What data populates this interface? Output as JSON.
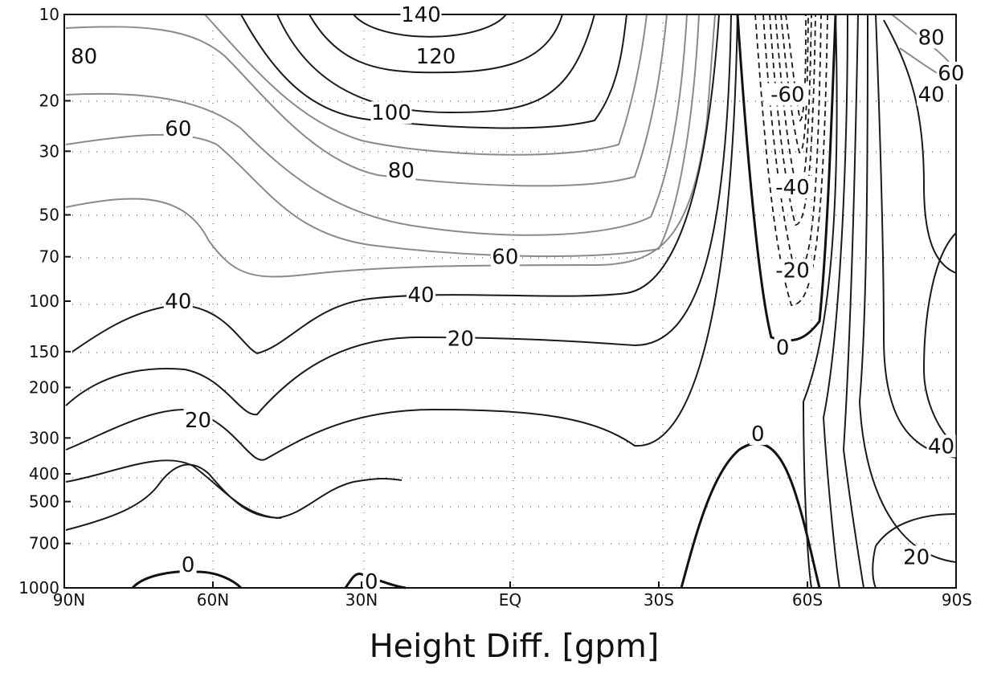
{
  "chart_data": {
    "type": "contour",
    "title": "Height Diff. [gpm]",
    "xlabel": "",
    "ylabel": "",
    "x_ticks": [
      "90N",
      "60N",
      "30N",
      "EQ",
      "30S",
      "60S",
      "90S"
    ],
    "y_ticks": [
      "10",
      "20",
      "30",
      "50",
      "70",
      "100",
      "150",
      "200",
      "300",
      "400",
      "500",
      "700",
      "1000"
    ],
    "y_scale": "log",
    "y_reversed": true,
    "x_range": [
      "90N",
      "90S"
    ],
    "y_range": [
      1000,
      10
    ],
    "grid": "dotted",
    "contour_levels": [
      -60,
      -40,
      -20,
      0,
      20,
      40,
      60,
      80,
      100,
      120,
      140
    ],
    "contour_labels": [
      {
        "level": "140",
        "lat": "18N",
        "p": 10
      },
      {
        "level": "120",
        "lat": "15N",
        "p": 14
      },
      {
        "level": "100",
        "lat": "24N",
        "p": 22
      },
      {
        "level": "80",
        "lat": "86N",
        "p": 14
      },
      {
        "level": "80",
        "lat": "85S",
        "p": 12
      },
      {
        "level": "80",
        "lat": "22N",
        "p": 35
      },
      {
        "level": "60",
        "lat": "89S",
        "p": 16
      },
      {
        "level": "60",
        "lat": "67N",
        "p": 25
      },
      {
        "level": "60",
        "lat": "1N",
        "p": 70
      },
      {
        "level": "40",
        "lat": "85S",
        "p": 19
      },
      {
        "level": "40",
        "lat": "67N",
        "p": 100
      },
      {
        "level": "40",
        "lat": "18N",
        "p": 95
      },
      {
        "level": "40",
        "lat": "87S",
        "p": 320
      },
      {
        "level": "20",
        "lat": "10N",
        "p": 135
      },
      {
        "level": "20",
        "lat": "63N",
        "p": 260
      },
      {
        "level": "20",
        "lat": "82S",
        "p": 780
      },
      {
        "level": "0",
        "lat": "55S",
        "p": 145
      },
      {
        "level": "0",
        "lat": "50S",
        "p": 290
      },
      {
        "level": "0",
        "lat": "65N",
        "p": 830
      },
      {
        "level": "0",
        "lat": "28N",
        "p": 950
      },
      {
        "level": "-60",
        "lat": "56S",
        "p": 19
      },
      {
        "level": "-40",
        "lat": "57S",
        "p": 40
      },
      {
        "level": "-20",
        "lat": "57S",
        "p": 78
      }
    ]
  }
}
